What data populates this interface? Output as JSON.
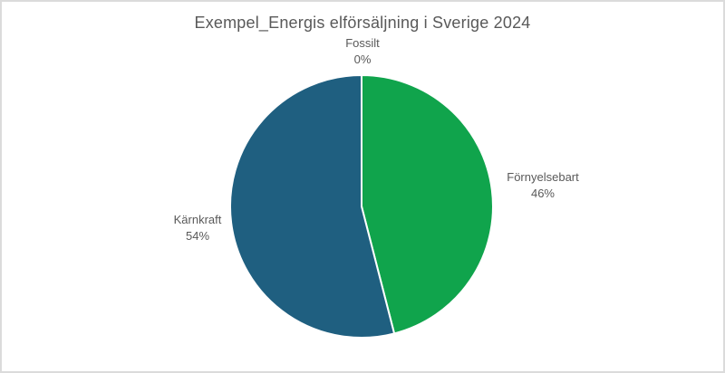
{
  "page": {
    "background_color": "#FFFFFF",
    "border_color": "#DBDBDB",
    "text_color": "#595959"
  },
  "chart_data": {
    "type": "pie",
    "title": "Exempel_Energis elförsäljning i Sverige 2024",
    "direction": "clockwise",
    "start_angle_deg": 0,
    "legend_position": "none",
    "data_labels": "category name and percentage, outside end",
    "separator_color": "#FFFFFF",
    "slices": [
      {
        "id": "fossilt",
        "label": "Fossilt",
        "pct_label": "0%",
        "value": 0,
        "color": null
      },
      {
        "id": "fornyelsebart",
        "label": "Förnyelsebart",
        "pct_label": "46%",
        "value": 46,
        "color": "#10A44C"
      },
      {
        "id": "karnkraft",
        "label": "Kärnkraft",
        "pct_label": "54%",
        "value": 54,
        "color": "#1F5F80"
      }
    ]
  }
}
